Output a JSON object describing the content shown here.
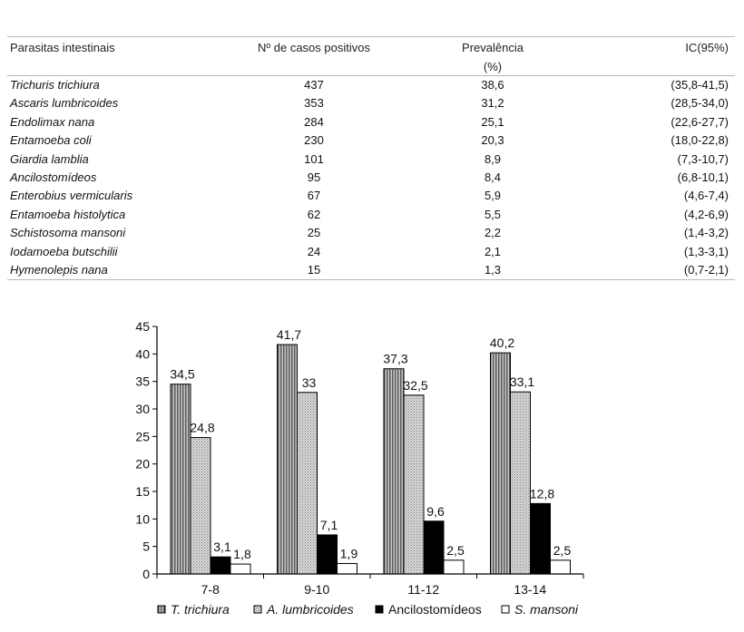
{
  "table": {
    "headers": {
      "col1": "Parasitas intestinais",
      "col2": "Nº de casos positivos",
      "col3_line1": "Prevalência",
      "col3_line2": "(%)",
      "col4": "IC(95%)"
    },
    "rows": [
      [
        "Trichuris trichiura",
        "437",
        "38,6",
        "(35,8-41,5)"
      ],
      [
        "Ascaris lumbricoides",
        "353",
        "31,2",
        "(28,5-34,0)"
      ],
      [
        "Endolimax nana",
        "284",
        "25,1",
        "(22,6-27,7)"
      ],
      [
        "Entamoeba coli",
        "230",
        "20,3",
        "(18,0-22,8)"
      ],
      [
        "Giardia lamblia",
        "101",
        "8,9",
        "(7,3-10,7)"
      ],
      [
        "Ancilostomídeos",
        "95",
        "8,4",
        "(6,8-10,1)"
      ],
      [
        "Enterobius vermicularis",
        "67",
        "5,9",
        "(4,6-7,4)"
      ],
      [
        "Entamoeba histolytica",
        "62",
        "5,5",
        "(4,2-6,9)"
      ],
      [
        "Schistosoma mansoni",
        "25",
        "2,2",
        "(1,4-3,2)"
      ],
      [
        "Iodamoeba butschilii",
        "24",
        "2,1",
        "(1,3-3,1)"
      ],
      [
        "Hymenolepis nana",
        "15",
        "1,3",
        "(0,7-2,1)"
      ]
    ]
  },
  "chart_data": {
    "type": "bar",
    "categories": [
      "7-8",
      "9-10",
      "11-12",
      "13-14"
    ],
    "series": [
      {
        "name": "T. trichiura",
        "values": [
          34.5,
          41.7,
          37.3,
          40.2
        ],
        "labels": [
          "34,5",
          "41,7",
          "37,3",
          "40,2"
        ]
      },
      {
        "name": "A. lumbricoides",
        "values": [
          24.8,
          33,
          32.5,
          33.1
        ],
        "labels": [
          "24,8",
          "33",
          "32,5",
          "33,1"
        ]
      },
      {
        "name": "Ancilostomídeos",
        "values": [
          3.1,
          7.1,
          9.6,
          12.8
        ],
        "labels": [
          "3,1",
          "7,1",
          "9,6",
          "12,8"
        ]
      },
      {
        "name": "S. mansoni",
        "values": [
          1.8,
          1.9,
          2.5,
          2.5
        ],
        "labels": [
          "1,8",
          "1,9",
          "2,5",
          "2,5"
        ]
      }
    ],
    "series_colors": [
      "#a0a0a0",
      "#bdbdbd",
      "#000000",
      "#ffffff"
    ],
    "yticks": [
      "0",
      "5",
      "10",
      "15",
      "20",
      "25",
      "30",
      "35",
      "40",
      "45"
    ],
    "ylim": [
      0,
      45
    ],
    "grid": false,
    "legend": "bottom",
    "xlabel": "",
    "ylabel": ""
  }
}
